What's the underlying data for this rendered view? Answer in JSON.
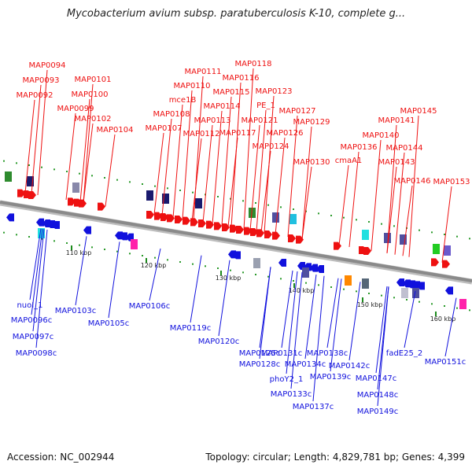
{
  "header": {
    "title": "Mycobacterium avium subsp. paratuberculosis K-10, complete g..."
  },
  "footer": {
    "accession": "Accession: NC_002944",
    "summary": "Topology: circular; Length: 4,829,781 bp; Genes: 4,399"
  },
  "colors": {
    "forward": "#ee1111",
    "reverse": "#1111dd",
    "backbone": "#8a8a8a",
    "tick": "#1c8a1c",
    "scale_label": "#222222"
  },
  "scale_ticks": [
    "110 kbp",
    "120 kbp",
    "130 kbp",
    "140 kbp",
    "150 kbp",
    "160 kbp"
  ],
  "forward_genes": [
    "MAP0094",
    "MAP0093",
    "MAP0092",
    "MAP0101",
    "MAP0100",
    "MAP0099",
    "MAP0102",
    "MAP0104",
    "MAP0111",
    "MAP0110",
    "mce1B",
    "MAP0108",
    "MAP0107",
    "MAP0118",
    "MAP0116",
    "MAP0115",
    "MAP0114",
    "MAP0113",
    "MAP0112",
    "MAP0117",
    "MAP0123",
    "PE_1",
    "MAP0121",
    "MAP0127",
    "MAP0126",
    "MAP0124",
    "MAP0129",
    "MAP0130",
    "MAP0145",
    "MAP0141",
    "MAP0140",
    "MAP0136",
    "MAP0144",
    "cmaA1",
    "MAP0143",
    "MAP0146",
    "MAP0153"
  ],
  "reverse_genes": [
    "nuoI_1",
    "MAP0096c",
    "MAP0097c",
    "MAP0098c",
    "MAP0103c",
    "MAP0105c",
    "MAP0106c",
    "MAP0119c",
    "MAP0120c",
    "MAP0125c",
    "MAP0131c",
    "MAP0128c",
    "MAP0134c",
    "phoY2_1",
    "MAP0133c",
    "MAP0138c",
    "MAP0139c",
    "MAP0137c",
    "MAP0142c",
    "fadE25_2",
    "MAP0147c",
    "MAP0148c",
    "MAP0149c",
    "MAP0151c"
  ]
}
